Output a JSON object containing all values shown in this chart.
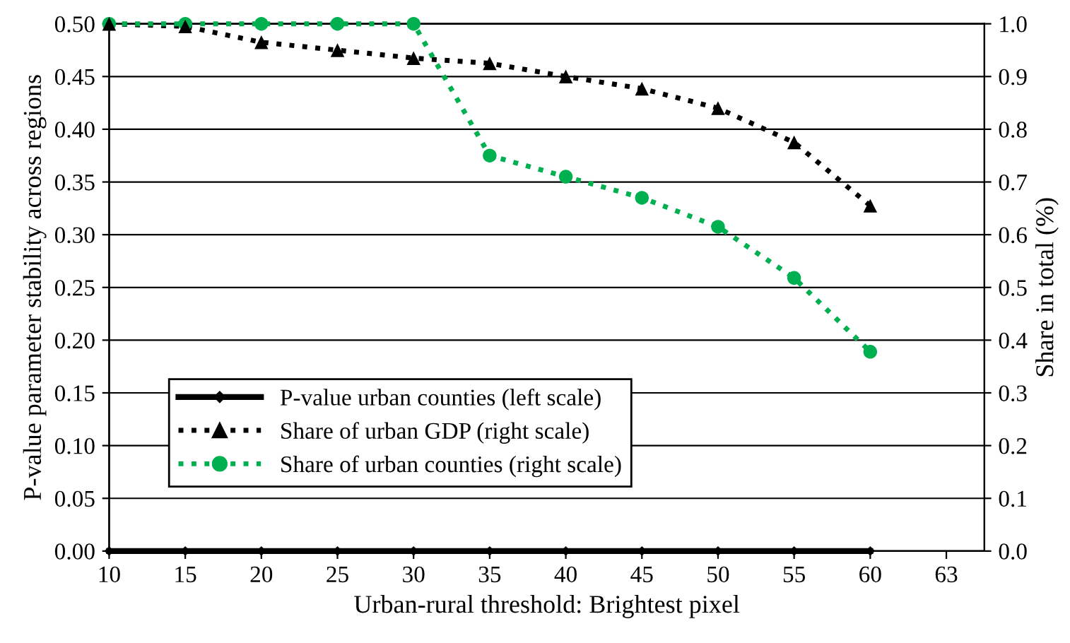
{
  "chart_data": {
    "type": "line",
    "xlabel": "Urban-rural threshold: Brightest pixel",
    "ylabel": "P-value parameter stability across regions",
    "y2label": "Share in total (%)",
    "categories": [
      "10",
      "15",
      "20",
      "25",
      "30",
      "35",
      "40",
      "45",
      "50",
      "55",
      "60",
      "63"
    ],
    "series": [
      {
        "name": "P-value urban counties (left scale)",
        "color": "#000000",
        "marker": "diamond",
        "line_style": "solid",
        "values": [
          0,
          0,
          0,
          0,
          0,
          0,
          0,
          0,
          0,
          0,
          0,
          null
        ]
      },
      {
        "name": "Share of urban GDP (right scale)",
        "color": "#000000",
        "marker": "triangle",
        "line_style": "dotted",
        "axis": "y2",
        "values": [
          1.0,
          0.995,
          0.965,
          0.95,
          0.935,
          0.925,
          0.9,
          0.877,
          0.84,
          0.775,
          0.655,
          null
        ]
      },
      {
        "name": "Share of urban counties (right scale)",
        "color": "#00b050",
        "marker": "circle",
        "line_style": "dotted",
        "axis": "y2",
        "values": [
          1.0,
          1.0,
          1.0,
          1.0,
          1.0,
          0.75,
          0.71,
          0.67,
          0.615,
          0.518,
          0.378,
          null
        ]
      }
    ],
    "ylim": [
      0,
      0.5
    ],
    "yticks": [
      {
        "value": 0,
        "label": "0.00"
      },
      {
        "value": 0.05,
        "label": "0.05"
      },
      {
        "value": 0.1,
        "label": "0.10"
      },
      {
        "value": 0.15,
        "label": "0.15"
      },
      {
        "value": 0.2,
        "label": "0.20"
      },
      {
        "value": 0.25,
        "label": "0.25"
      },
      {
        "value": 0.3,
        "label": "0.30"
      },
      {
        "value": 0.35,
        "label": "0.35"
      },
      {
        "value": 0.4,
        "label": "0.40"
      },
      {
        "value": 0.45,
        "label": "0.45"
      },
      {
        "value": 0.5,
        "label": "0.50"
      }
    ],
    "y2lim": [
      0,
      1
    ],
    "y2ticks": [
      {
        "value": 0,
        "label": "0.0"
      },
      0.1,
      0.2,
      0.3,
      0.4,
      0.5,
      0.6,
      0.7,
      0.8,
      0.9,
      {
        "value": 1,
        "label": "1.0"
      }
    ],
    "grid": "y",
    "legend": "bottom left"
  }
}
